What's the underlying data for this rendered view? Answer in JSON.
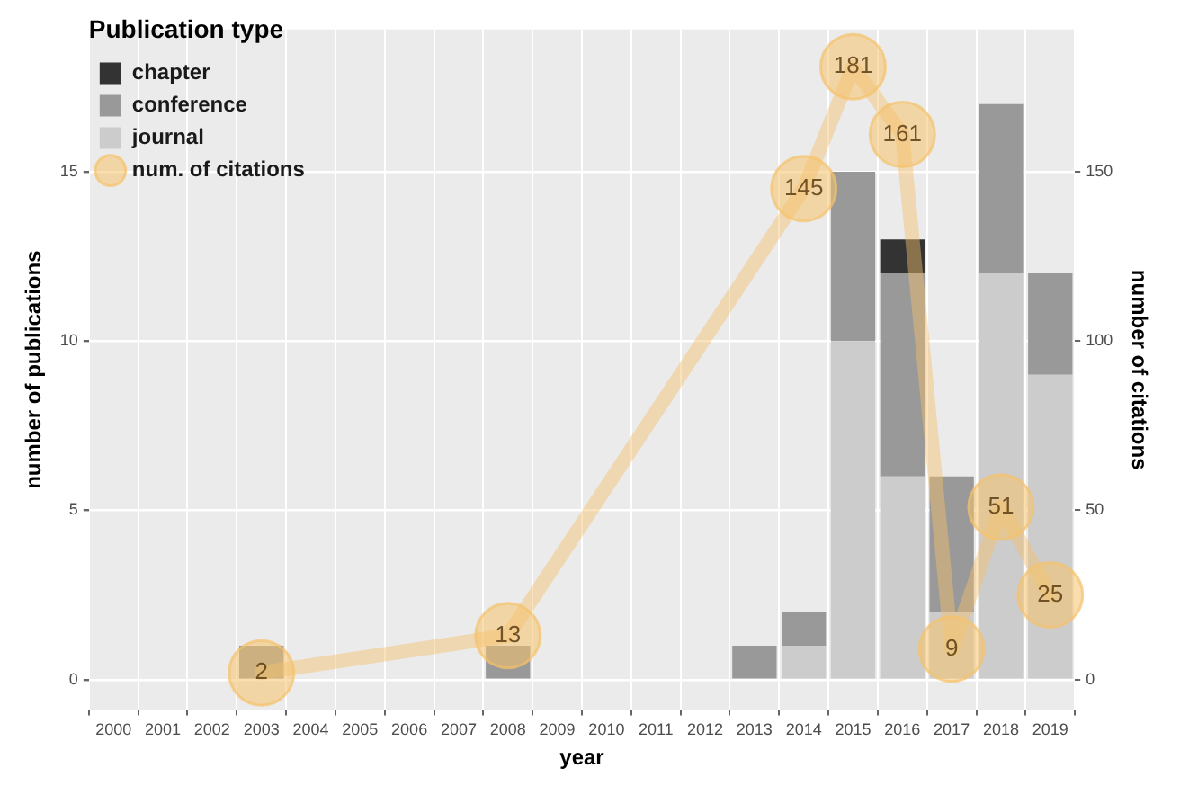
{
  "chart_data": {
    "type": "bar",
    "stacked": true,
    "xlabel": "year",
    "ylabel": "number of publications",
    "y2label": "number of citations",
    "legend_title": "Publication type",
    "legend": "top left",
    "grid": true,
    "categories": [
      "2000",
      "2001",
      "2002",
      "2003",
      "2004",
      "2005",
      "2006",
      "2007",
      "2008",
      "2009",
      "2010",
      "2011",
      "2012",
      "2013",
      "2014",
      "2015",
      "2016",
      "2017",
      "2018",
      "2019"
    ],
    "ylim": [
      -0.9,
      19.2
    ],
    "yticks": [
      0,
      5,
      10,
      15
    ],
    "y2lim": [
      -9,
      192
    ],
    "y2ticks": [
      0,
      50,
      100,
      150
    ],
    "series": [
      {
        "name": "journal",
        "color": "#cccccc",
        "values": [
          0,
          0,
          0,
          0,
          0,
          0,
          0,
          0,
          0,
          0,
          0,
          0,
          0,
          0,
          1,
          10,
          6,
          2,
          12,
          9
        ]
      },
      {
        "name": "conference",
        "color": "#999999",
        "values": [
          0,
          0,
          0,
          1,
          0,
          0,
          0,
          0,
          1,
          0,
          0,
          0,
          0,
          1,
          1,
          5,
          6,
          4,
          5,
          3
        ]
      },
      {
        "name": "chapter",
        "color": "#333333",
        "values": [
          0,
          0,
          0,
          0,
          0,
          0,
          0,
          0,
          0,
          0,
          0,
          0,
          0,
          0,
          0,
          0,
          1,
          0,
          0,
          0
        ]
      },
      {
        "name": "num. of citations",
        "type": "line",
        "axis": "y2",
        "marker": "circle",
        "line_style": "solid",
        "color": "#f5c26b",
        "values": [
          null,
          null,
          null,
          2,
          null,
          null,
          null,
          null,
          13,
          null,
          null,
          null,
          null,
          null,
          145,
          181,
          161,
          9,
          51,
          25
        ],
        "value_labels": [
          null,
          null,
          null,
          "2",
          null,
          null,
          null,
          null,
          "13",
          null,
          null,
          null,
          null,
          null,
          "145",
          "181",
          "161",
          "9",
          "51",
          "25"
        ]
      }
    ]
  }
}
